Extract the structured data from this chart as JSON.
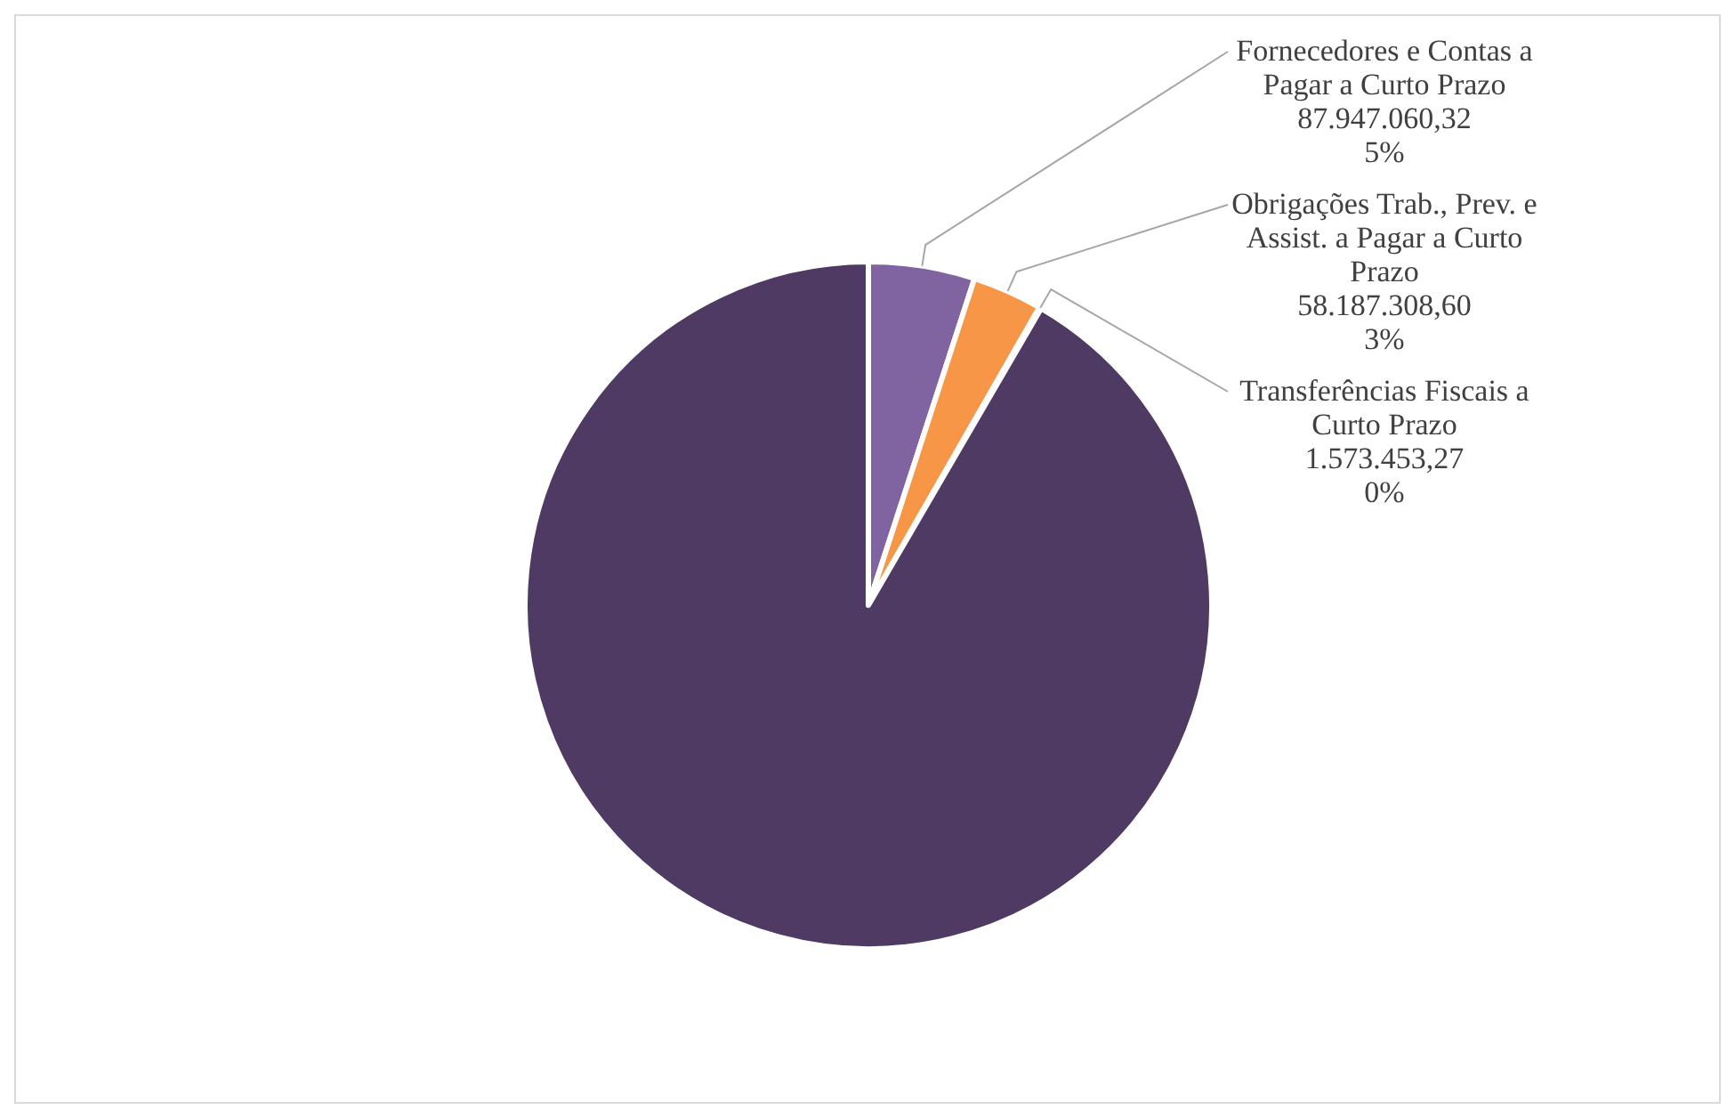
{
  "chart_data": {
    "type": "pie",
    "categories": [
      "Fornecedores e Contas a Pagar a Curto Prazo",
      "Obrigações Trab., Prev. e Assist. a Pagar a Curto Prazo",
      "Transferências Fiscais a Curto Prazo",
      null
    ],
    "values": [
      5,
      3.3,
      0.09,
      91.61
    ],
    "colors": [
      "#8064a2",
      "#f79646",
      "#4bacc6",
      "#4e3a63"
    ],
    "value_labels": [
      "87.947.060,32\n5%",
      "58.187.308,60\n3%",
      "1.573.453,27\n0%",
      null
    ]
  }
}
